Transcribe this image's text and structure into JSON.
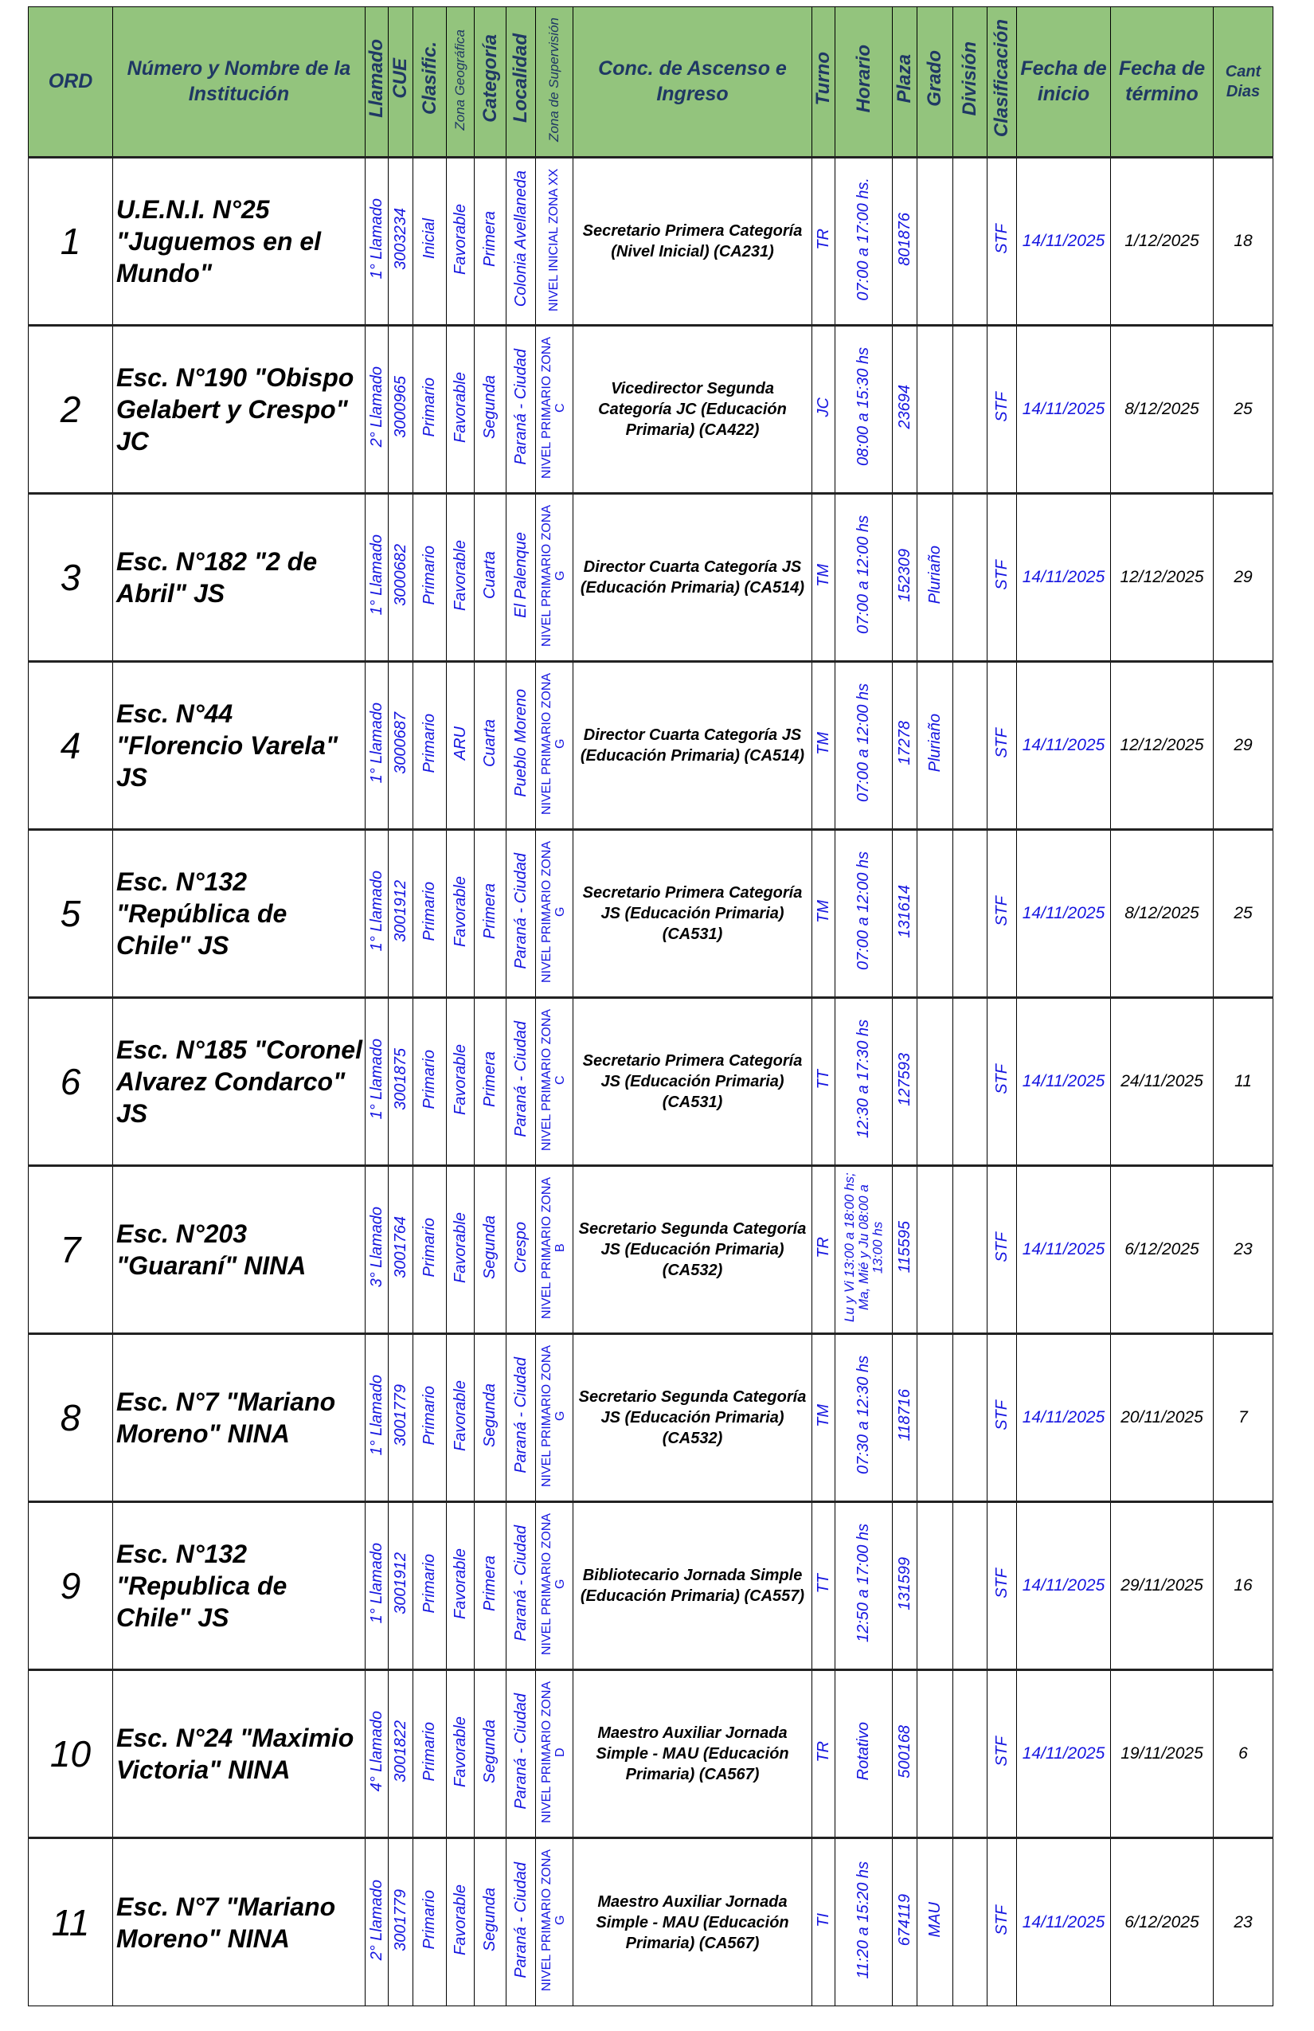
{
  "headers": {
    "ord": "ORD",
    "nombre": "Número y Nombre de la Institución",
    "llamado": "Llamado",
    "cue": "CUE",
    "clasif": "Clasific.",
    "zona_geo": "Zona Geográfica",
    "categoria": "Categoría",
    "localidad": "Localidad",
    "zona_sup": "Zona de Supervisión",
    "conc": "Conc. de Ascenso e Ingreso",
    "turno": "Turno",
    "horario": "Horario",
    "plaza": "Plaza",
    "grado": "Grado",
    "division": "División",
    "clasificacion": "Clasificación",
    "fecha_inicio": "Fecha de inicio",
    "fecha_termino": "Fecha de término",
    "cant_dias": "Cant Dias"
  },
  "colors": {
    "header_bg": "#93c47d",
    "header_text": "#1f3864",
    "value_blue": "#1515e0"
  },
  "rows": [
    {
      "ord": "1",
      "nombre": "U.E.N.I. N°25 \"Juguemos en el Mundo\"",
      "llamado": "1° Llamado",
      "cue": "3003234",
      "clasif": "Inicial",
      "zona_geo": "Favorable",
      "categoria": "Primera",
      "localidad": "Colonia Avellaneda",
      "zona_sup": "NIVEL INICIAL ZONA XX",
      "conc": "Secretario Primera Categoría (Nivel Inicial) (CA231)",
      "turno": "TR",
      "horario": "07:00 a 17:00 hs.",
      "plaza": "801876",
      "grado": "",
      "division": "",
      "clasificacion": "STF",
      "fecha_inicio": "14/11/2025",
      "fecha_termino": "1/12/2025",
      "cant_dias": "18"
    },
    {
      "ord": "2",
      "nombre": "Esc. N°190 \"Obispo Gelabert y Crespo\" JC",
      "llamado": "2° Llamado",
      "cue": "3000965",
      "clasif": "Primario",
      "zona_geo": "Favorable",
      "categoria": "Segunda",
      "localidad": "Paraná - Ciudad",
      "zona_sup": "NIVEL PRIMARIO ZONA C",
      "conc": "Vicedirector Segunda Categoría JC (Educación Primaria) (CA422)",
      "turno": "JC",
      "horario": "08:00 a 15:30 hs",
      "plaza": "23694",
      "grado": "",
      "division": "",
      "clasificacion": "STF",
      "fecha_inicio": "14/11/2025",
      "fecha_termino": "8/12/2025",
      "cant_dias": "25"
    },
    {
      "ord": "3",
      "nombre": "Esc. N°182 \"2 de Abril\" JS",
      "llamado": "1° Llamado",
      "cue": "3000682",
      "clasif": "Primario",
      "zona_geo": "Favorable",
      "categoria": "Cuarta",
      "localidad": "El Palenque",
      "zona_sup": "NIVEL PRIMARIO ZONA G",
      "conc": "Director Cuarta Categoría JS (Educación Primaria) (CA514)",
      "turno": "TM",
      "horario": "07:00 a 12:00 hs",
      "plaza": "152309",
      "grado": "Pluriaño",
      "division": "",
      "clasificacion": "STF",
      "fecha_inicio": "14/11/2025",
      "fecha_termino": "12/12/2025",
      "cant_dias": "29"
    },
    {
      "ord": "4",
      "nombre": "Esc. N°44 \"Florencio Varela\" JS",
      "llamado": "1° Llamado",
      "cue": "3000687",
      "clasif": "Primario",
      "zona_geo": "ARU",
      "categoria": "Cuarta",
      "localidad": "Pueblo Moreno",
      "zona_sup": "NIVEL PRIMARIO ZONA G",
      "conc": "Director Cuarta Categoría JS (Educación Primaria) (CA514)",
      "turno": "TM",
      "horario": "07:00 a 12:00 hs",
      "plaza": "17278",
      "grado": "Pluriaño",
      "division": "",
      "clasificacion": "STF",
      "fecha_inicio": "14/11/2025",
      "fecha_termino": "12/12/2025",
      "cant_dias": "29"
    },
    {
      "ord": "5",
      "nombre": "Esc. N°132 \"República de Chile\" JS",
      "llamado": "1° Llamado",
      "cue": "3001912",
      "clasif": "Primario",
      "zona_geo": "Favorable",
      "categoria": "Primera",
      "localidad": "Paraná - Ciudad",
      "zona_sup": "NIVEL PRIMARIO ZONA G",
      "conc": "Secretario Primera Categoría JS (Educación Primaria) (CA531)",
      "turno": "TM",
      "horario": "07:00 a 12:00 hs",
      "plaza": "131614",
      "grado": "",
      "division": "",
      "clasificacion": "STF",
      "fecha_inicio": "14/11/2025",
      "fecha_termino": "8/12/2025",
      "cant_dias": "25"
    },
    {
      "ord": "6",
      "nombre": "Esc. N°185 \"Coronel Alvarez Condarco\" JS",
      "llamado": "1° Llamado",
      "cue": "3001875",
      "clasif": "Primario",
      "zona_geo": "Favorable",
      "categoria": "Primera",
      "localidad": "Paraná - Ciudad",
      "zona_sup": "NIVEL PRIMARIO ZONA C",
      "conc": "Secretario Primera Categoría JS (Educación Primaria) (CA531)",
      "turno": "TT",
      "horario": "12:30 a 17:30 hs",
      "plaza": "127593",
      "grado": "",
      "division": "",
      "clasificacion": "STF",
      "fecha_inicio": "14/11/2025",
      "fecha_termino": "24/11/2025",
      "cant_dias": "11"
    },
    {
      "ord": "7",
      "nombre": "Esc. N°203 \"Guaraní\" NINA",
      "llamado": "3° Llamado",
      "cue": "3001764",
      "clasif": "Primario",
      "zona_geo": "Favorable",
      "categoria": "Segunda",
      "localidad": "Crespo",
      "zona_sup": "NIVEL PRIMARIO ZONA B",
      "conc": "Secretario Segunda Categoría JS (Educación Primaria) (CA532)",
      "turno": "TR",
      "horario": "Lu y Vi 13:00 a 18:00 hs; Ma, Mié y Ju 08:00 a 13:00 hs",
      "plaza": "115595",
      "grado": "",
      "division": "",
      "clasificacion": "STF",
      "fecha_inicio": "14/11/2025",
      "fecha_termino": "6/12/2025",
      "cant_dias": "23"
    },
    {
      "ord": "8",
      "nombre": "Esc. N°7 \"Mariano Moreno\" NINA",
      "llamado": "1° Llamado",
      "cue": "3001779",
      "clasif": "Primario",
      "zona_geo": "Favorable",
      "categoria": "Segunda",
      "localidad": "Paraná - Ciudad",
      "zona_sup": "NIVEL PRIMARIO ZONA G",
      "conc": "Secretario Segunda Categoría JS (Educación Primaria) (CA532)",
      "turno": "TM",
      "horario": "07:30 a 12:30 hs",
      "plaza": "118716",
      "grado": "",
      "division": "",
      "clasificacion": "STF",
      "fecha_inicio": "14/11/2025",
      "fecha_termino": "20/11/2025",
      "cant_dias": "7"
    },
    {
      "ord": "9",
      "nombre": "Esc. N°132 \"Republica de Chile\" JS",
      "llamado": "1° Llamado",
      "cue": "3001912",
      "clasif": "Primario",
      "zona_geo": "Favorable",
      "categoria": "Primera",
      "localidad": "Paraná - Ciudad",
      "zona_sup": "NIVEL PRIMARIO ZONA G",
      "conc": "Bibliotecario Jornada Simple (Educación Primaria) (CA557)",
      "turno": "TT",
      "horario": "12:50 a 17:00 hs",
      "plaza": "131599",
      "grado": "",
      "division": "",
      "clasificacion": "STF",
      "fecha_inicio": "14/11/2025",
      "fecha_termino": "29/11/2025",
      "cant_dias": "16"
    },
    {
      "ord": "10",
      "nombre": "Esc. N°24 \"Maximio Victoria\" NINA",
      "llamado": "4° Llamado",
      "cue": "3001822",
      "clasif": "Primario",
      "zona_geo": "Favorable",
      "categoria": "Segunda",
      "localidad": "Paraná - Ciudad",
      "zona_sup": "NIVEL PRIMARIO ZONA D",
      "conc": "Maestro Auxiliar Jornada Simple - MAU (Educación Primaria) (CA567)",
      "turno": "TR",
      "horario": "Rotativo",
      "plaza": "500168",
      "grado": "",
      "division": "",
      "clasificacion": "STF",
      "fecha_inicio": "14/11/2025",
      "fecha_termino": "19/11/2025",
      "cant_dias": "6"
    },
    {
      "ord": "11",
      "nombre": "Esc. N°7 \"Mariano Moreno\" NINA",
      "llamado": "2° Llamado",
      "cue": "3001779",
      "clasif": "Primario",
      "zona_geo": "Favorable",
      "categoria": "Segunda",
      "localidad": "Paraná - Ciudad",
      "zona_sup": "NIVEL PRIMARIO ZONA G",
      "conc": "Maestro Auxiliar Jornada Simple - MAU (Educación Primaria) (CA567)",
      "turno": "TI",
      "horario": "11:20 a 15:20 hs",
      "plaza": "674119",
      "grado": "MAU",
      "division": "",
      "clasificacion": "STF",
      "fecha_inicio": "14/11/2025",
      "fecha_termino": "6/12/2025",
      "cant_dias": "23"
    }
  ]
}
